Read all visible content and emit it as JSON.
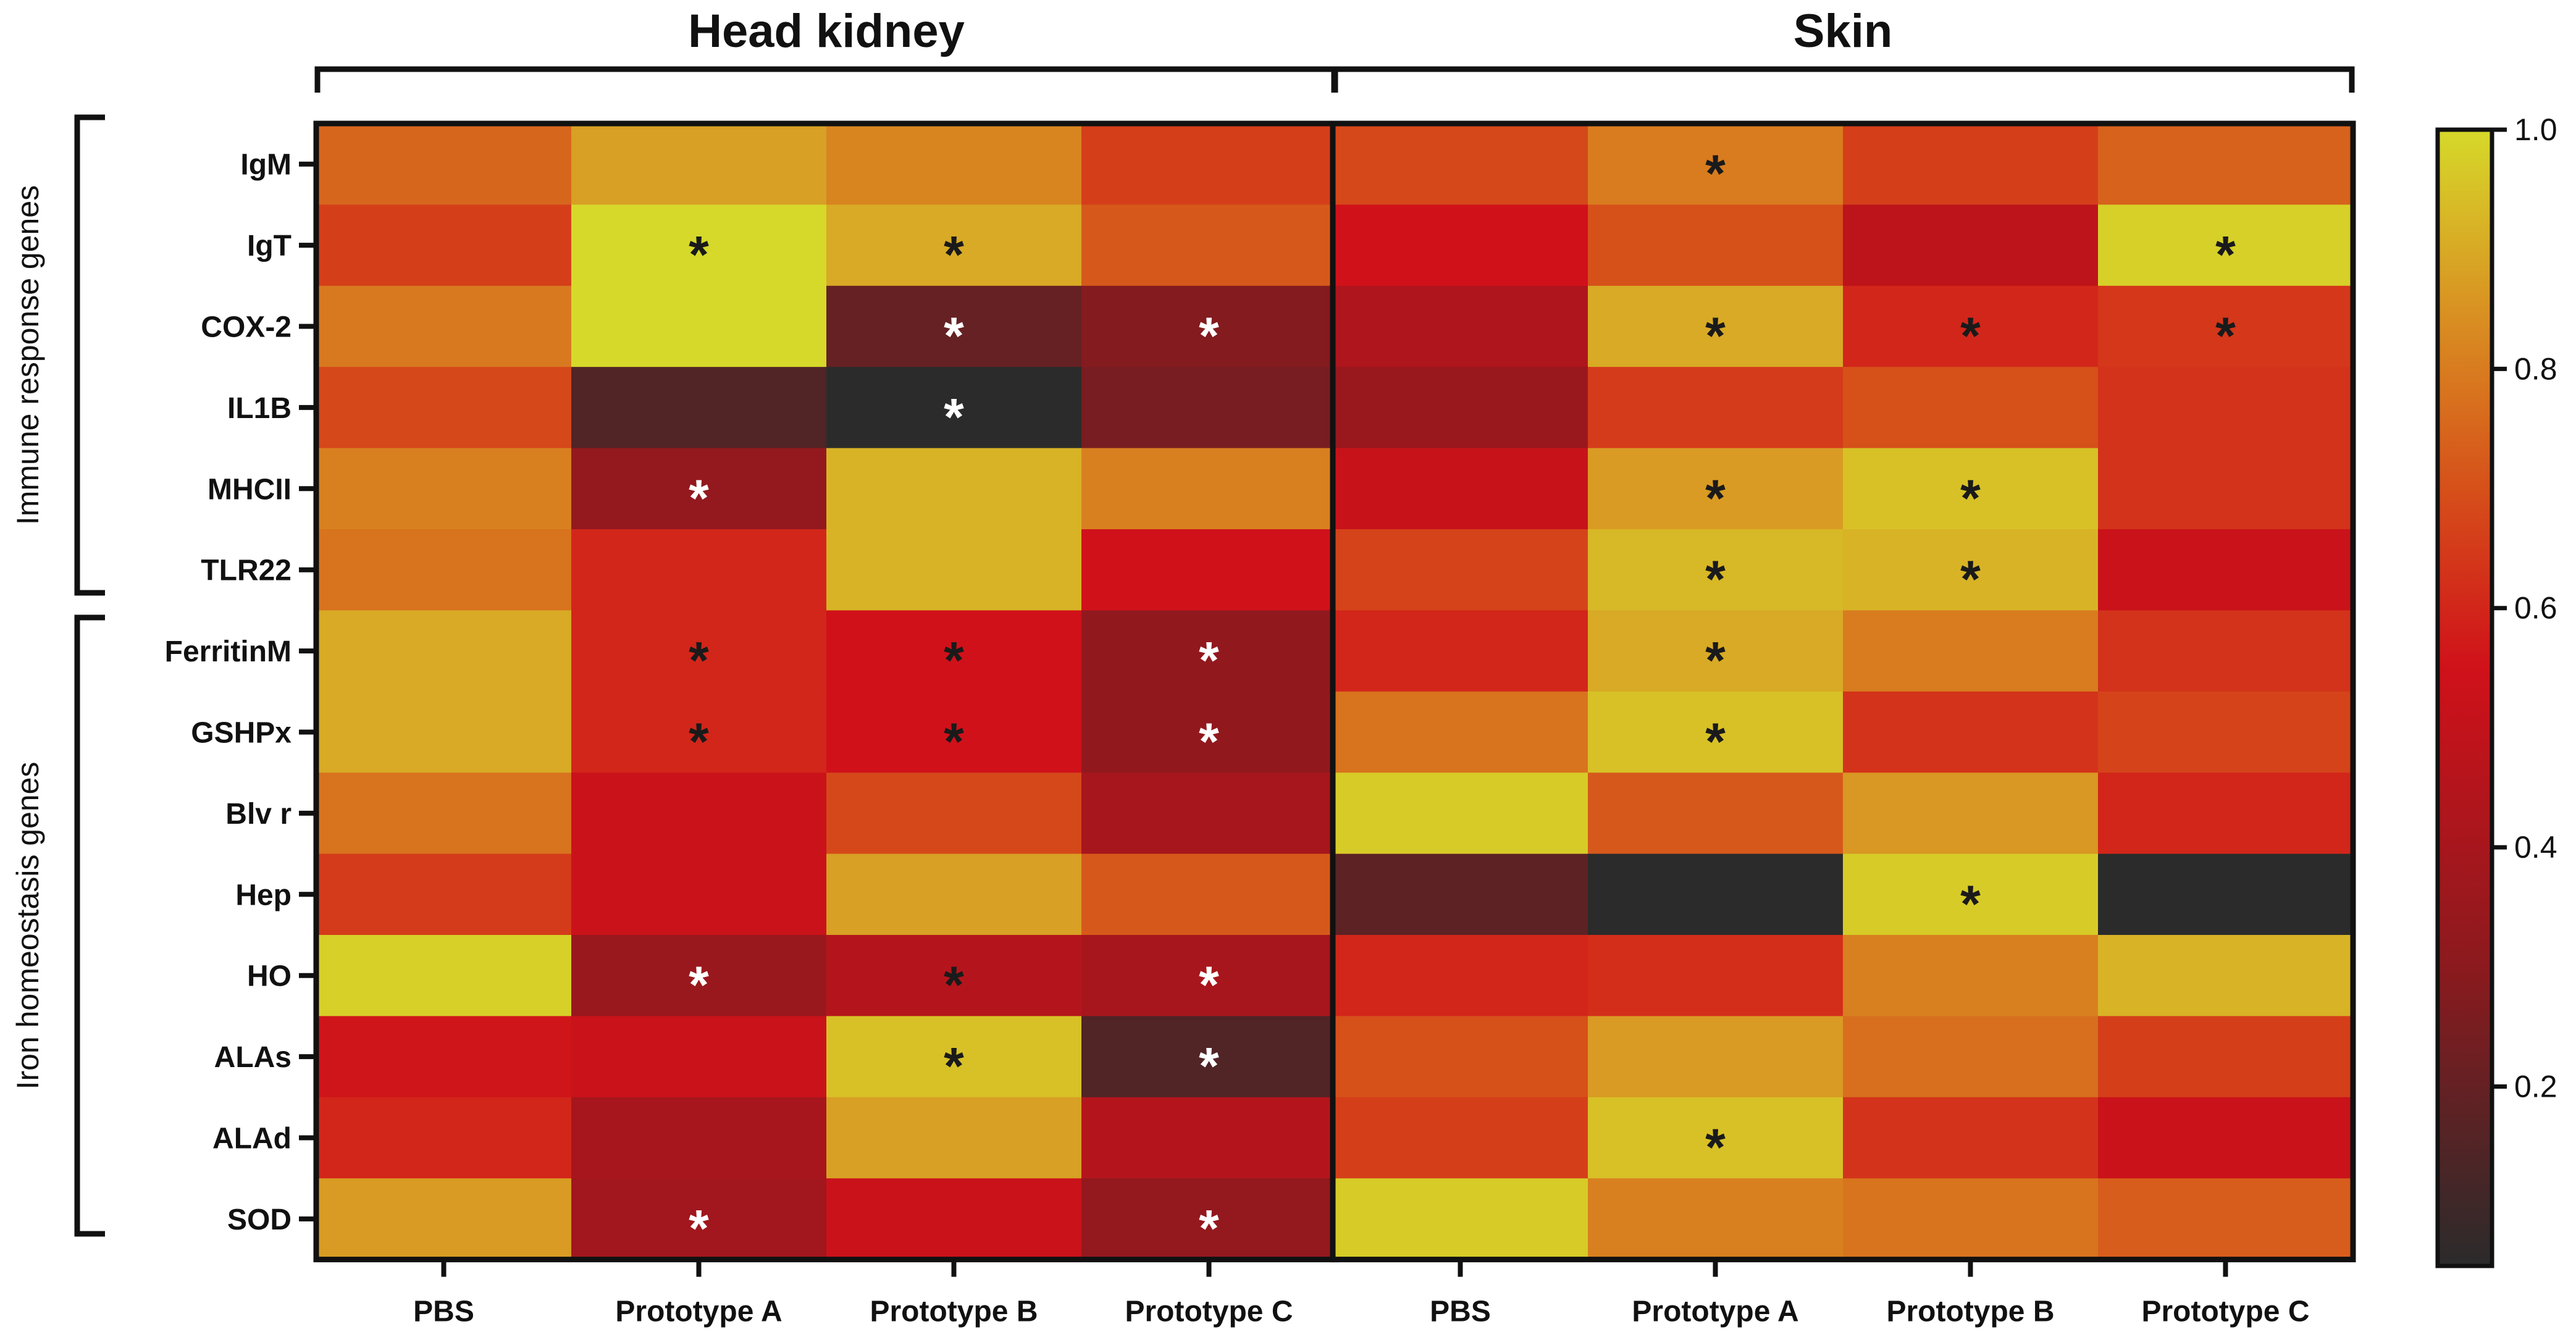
{
  "chart_data": {
    "type": "heatmap",
    "row_groups": [
      {
        "label": "Immune response genes",
        "rows": [
          "IgM",
          "IgT",
          "COX-2",
          "IL1B",
          "MHCII",
          "TLR22"
        ]
      },
      {
        "label": "Iron homeostasis genes",
        "rows": [
          "FerritinM",
          "GSHPx",
          "Blv r",
          "Hep",
          "HO",
          "ALAs",
          "ALAd",
          "SOD"
        ]
      }
    ],
    "rows": [
      "IgM",
      "IgT",
      "COX-2",
      "IL1B",
      "MHCII",
      "TLR22",
      "FerritinM",
      "GSHPx",
      "Blv r",
      "Hep",
      "HO",
      "ALAs",
      "ALAd",
      "SOD"
    ],
    "columns": [
      "PBS",
      "Prototype A",
      "Prototype B",
      "Prototype C"
    ],
    "panels": [
      {
        "title": "Head kidney",
        "values": [
          [
            0.75,
            0.88,
            0.82,
            0.66
          ],
          [
            0.66,
            1.0,
            0.9,
            0.72
          ],
          [
            0.79,
            1.0,
            0.2,
            0.28
          ],
          [
            0.68,
            0.15,
            0.05,
            0.25
          ],
          [
            0.81,
            0.33,
            0.92,
            0.81
          ],
          [
            0.78,
            0.6,
            0.92,
            0.55
          ],
          [
            0.9,
            0.6,
            0.55,
            0.32
          ],
          [
            0.9,
            0.6,
            0.55,
            0.32
          ],
          [
            0.78,
            0.53,
            0.68,
            0.4
          ],
          [
            0.65,
            0.53,
            0.88,
            0.72
          ],
          [
            0.98,
            0.35,
            0.45,
            0.4
          ],
          [
            0.56,
            0.53,
            0.95,
            0.15
          ],
          [
            0.6,
            0.4,
            0.88,
            0.45
          ],
          [
            0.87,
            0.38,
            0.53,
            0.33
          ]
        ],
        "significance": [
          [
            "",
            "",
            "",
            ""
          ],
          [
            "",
            "*",
            "*",
            ""
          ],
          [
            "",
            "",
            "*",
            "*"
          ],
          [
            "",
            "",
            "*",
            ""
          ],
          [
            "",
            "*",
            "",
            ""
          ],
          [
            "",
            "",
            "",
            ""
          ],
          [
            "",
            "*",
            "*",
            "*"
          ],
          [
            "",
            "*",
            "*",
            "*"
          ],
          [
            "",
            "",
            "",
            ""
          ],
          [
            "",
            "",
            "",
            ""
          ],
          [
            "",
            "*",
            "*",
            "*"
          ],
          [
            "",
            "",
            "*",
            "*"
          ],
          [
            "",
            "",
            "",
            ""
          ],
          [
            "",
            "*",
            "",
            "*"
          ]
        ]
      },
      {
        "title": "Skin",
        "values": [
          [
            0.68,
            0.8,
            0.66,
            0.74
          ],
          [
            0.55,
            0.7,
            0.48,
            0.98
          ],
          [
            0.43,
            0.9,
            0.6,
            0.64
          ],
          [
            0.35,
            0.65,
            0.7,
            0.63
          ],
          [
            0.52,
            0.87,
            0.95,
            0.63
          ],
          [
            0.67,
            0.93,
            0.92,
            0.53
          ],
          [
            0.6,
            0.9,
            0.8,
            0.63
          ],
          [
            0.78,
            0.95,
            0.63,
            0.67
          ],
          [
            0.97,
            0.72,
            0.86,
            0.6
          ],
          [
            0.18,
            0.05,
            0.97,
            0.05
          ],
          [
            0.6,
            0.62,
            0.81,
            0.92
          ],
          [
            0.7,
            0.87,
            0.77,
            0.66
          ],
          [
            0.66,
            0.95,
            0.63,
            0.53
          ],
          [
            0.97,
            0.81,
            0.78,
            0.73
          ]
        ],
        "significance": [
          [
            "",
            "*",
            "",
            ""
          ],
          [
            "",
            "",
            "",
            "*"
          ],
          [
            "",
            "*",
            "*",
            "*"
          ],
          [
            "",
            "",
            "",
            ""
          ],
          [
            "",
            "*",
            "*",
            ""
          ],
          [
            "",
            "*",
            "*",
            ""
          ],
          [
            "",
            "*",
            "",
            ""
          ],
          [
            "",
            "*",
            "",
            ""
          ],
          [
            "",
            "",
            "",
            ""
          ],
          [
            "",
            "",
            "*",
            ""
          ],
          [
            "",
            "",
            "",
            ""
          ],
          [
            "",
            "",
            "",
            ""
          ],
          [
            "",
            "*",
            "",
            ""
          ],
          [
            "",
            "",
            "",
            ""
          ]
        ]
      }
    ],
    "colorbar": {
      "min": 0.05,
      "max": 1.0,
      "ticks": [
        "1.0",
        "0.8",
        "0.6",
        "0.4",
        "0.2"
      ],
      "tick_values": [
        1.0,
        0.8,
        0.6,
        0.4,
        0.2
      ],
      "stops": [
        {
          "v": 0.05,
          "color": "#2b2b2b"
        },
        {
          "v": 0.3,
          "color": "#8b1a1e"
        },
        {
          "v": 0.55,
          "color": "#d0111a"
        },
        {
          "v": 0.7,
          "color": "#d6501a"
        },
        {
          "v": 0.85,
          "color": "#d99222"
        },
        {
          "v": 1.0,
          "color": "#d6d92a"
        }
      ]
    }
  }
}
